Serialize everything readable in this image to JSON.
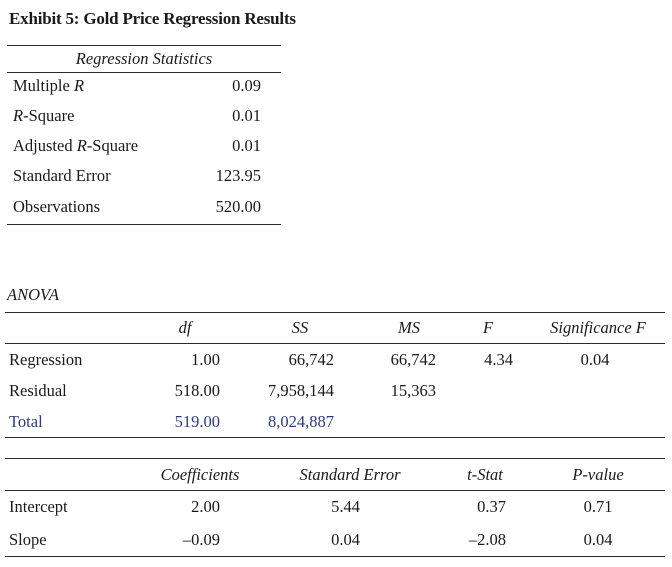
{
  "exhibit_title": "Exhibit 5: Gold Price Regression Results",
  "regression_statistics": {
    "header": "Regression Statistics",
    "rows": [
      {
        "label_plain_prefix": "Multiple ",
        "label_italic": "R",
        "label_plain_suffix": "",
        "value": "0.09"
      },
      {
        "label_plain_prefix": "",
        "label_italic": "R",
        "label_plain_suffix": "-Square",
        "value": "0.01"
      },
      {
        "label_plain_prefix": "Adjusted ",
        "label_italic": "R",
        "label_plain_suffix": "-Square",
        "value": "0.01"
      },
      {
        "label_plain_prefix": "Standard Error",
        "label_italic": "",
        "label_plain_suffix": "",
        "value": "123.95"
      },
      {
        "label_plain_prefix": "Observations",
        "label_italic": "",
        "label_plain_suffix": "",
        "value": "520.00"
      }
    ]
  },
  "anova": {
    "label": "ANOVA",
    "headers": [
      "df",
      "SS",
      "MS",
      "F",
      "Significance F"
    ],
    "rows": [
      {
        "label": "Regression",
        "df": "1.00",
        "ss": "66,742",
        "ms": "66,742",
        "f": "4.34",
        "sig": "0.04"
      },
      {
        "label": "Residual",
        "df": "518.00",
        "ss": "7,958,144",
        "ms": "15,363",
        "f": "",
        "sig": ""
      },
      {
        "label": "Total",
        "df": "519.00",
        "ss": "8,024,887",
        "ms": "",
        "f": "",
        "sig": ""
      }
    ]
  },
  "coefficients": {
    "headers": [
      "Coefficients",
      "Standard Error",
      "t-Stat",
      "P-value"
    ],
    "rows": [
      {
        "label": "Intercept",
        "coef": "2.00",
        "se": "5.44",
        "t": "0.37",
        "p": "0.71"
      },
      {
        "label": "Slope",
        "coef": "–0.09",
        "se": "0.04",
        "t": "–2.08",
        "p": "0.04"
      }
    ]
  }
}
